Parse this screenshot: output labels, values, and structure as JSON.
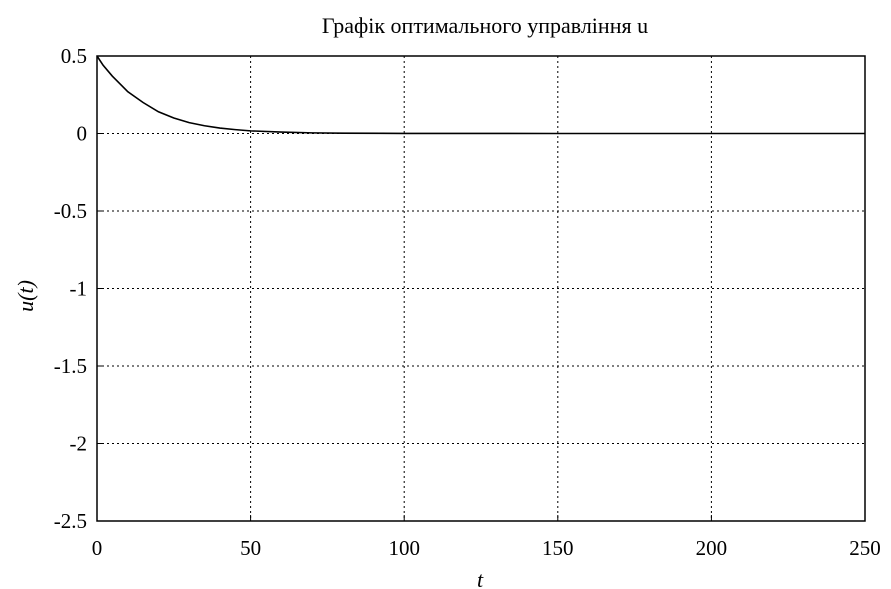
{
  "chart_data": {
    "type": "line",
    "title": "Графік оптимального управління u",
    "xlabel": "t",
    "ylabel": "u(t)",
    "xlim": [
      0,
      250
    ],
    "ylim": [
      -2.5,
      0.5
    ],
    "x_ticks": [
      0,
      50,
      100,
      150,
      200,
      250
    ],
    "x_tick_labels": [
      "0",
      "50",
      "100",
      "150",
      "200",
      "250"
    ],
    "y_ticks": [
      0.5,
      0,
      -0.5,
      -1,
      -1.5,
      -2,
      -2.5
    ],
    "y_tick_labels": [
      "0.5",
      "0",
      "-0.5",
      "-1",
      "-1.5",
      "-2",
      "-2.5"
    ],
    "grid": true,
    "grid_style": "dotted",
    "line_color": "#000000",
    "series": [
      {
        "x": [
          0,
          2,
          5,
          8,
          10,
          15,
          20,
          25,
          30,
          35,
          40,
          45,
          50,
          60,
          70,
          80,
          100,
          125,
          150,
          175,
          200,
          225,
          250
        ],
        "values": [
          0.5,
          0.44,
          0.37,
          0.31,
          0.27,
          0.2,
          0.14,
          0.1,
          0.07,
          0.05,
          0.035,
          0.025,
          0.017,
          0.009,
          0.004,
          0.002,
          0.0005,
          0.0001,
          0,
          0,
          0,
          0,
          0
        ]
      }
    ]
  }
}
